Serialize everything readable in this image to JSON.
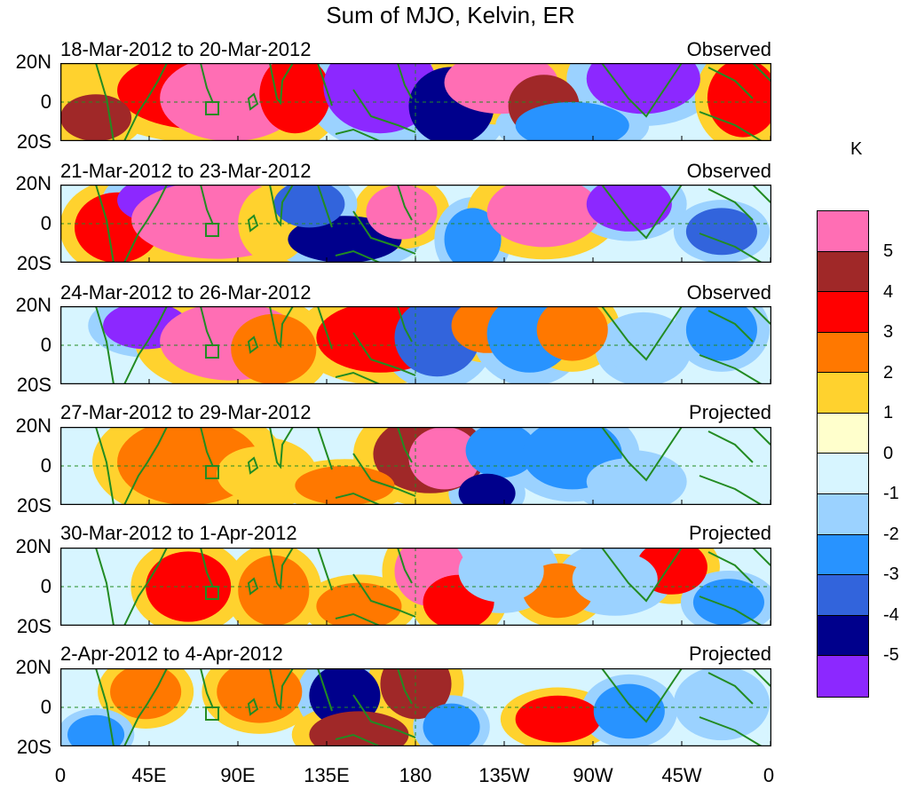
{
  "title": "Sum of MJO, Kelvin, ER",
  "units": "K",
  "lat_labels": [
    "20N",
    "0",
    "20S"
  ],
  "lon_labels": [
    "0",
    "45E",
    "90E",
    "135E",
    "180",
    "135W",
    "90W",
    "45W",
    "0"
  ],
  "panels": [
    {
      "period": "18-Mar-2012 to 20-Mar-2012",
      "status": "Observed"
    },
    {
      "period": "21-Mar-2012 to 23-Mar-2012",
      "status": "Observed"
    },
    {
      "period": "24-Mar-2012 to 26-Mar-2012",
      "status": "Observed"
    },
    {
      "period": "27-Mar-2012 to 29-Mar-2012",
      "status": "Projected"
    },
    {
      "period": "30-Mar-2012 to 1-Apr-2012",
      "status": "Projected"
    },
    {
      "period": "2-Apr-2012 to 4-Apr-2012",
      "status": "Projected"
    }
  ],
  "legend": {
    "levels": [
      "5",
      "4",
      "3",
      "2",
      "1",
      "0",
      "-1",
      "-2",
      "-3",
      "-4",
      "-5"
    ],
    "colors": [
      "#ff6eb4",
      "#a02828",
      "#ff0000",
      "#ff7800",
      "#ffd22e",
      "#ffffcc",
      "#d7f5ff",
      "#9bd2ff",
      "#2893ff",
      "#3264dc",
      "#00008c",
      "#8c28ff"
    ]
  },
  "colors": {
    "coast": "#228b22",
    "equator": "#228b22"
  }
}
